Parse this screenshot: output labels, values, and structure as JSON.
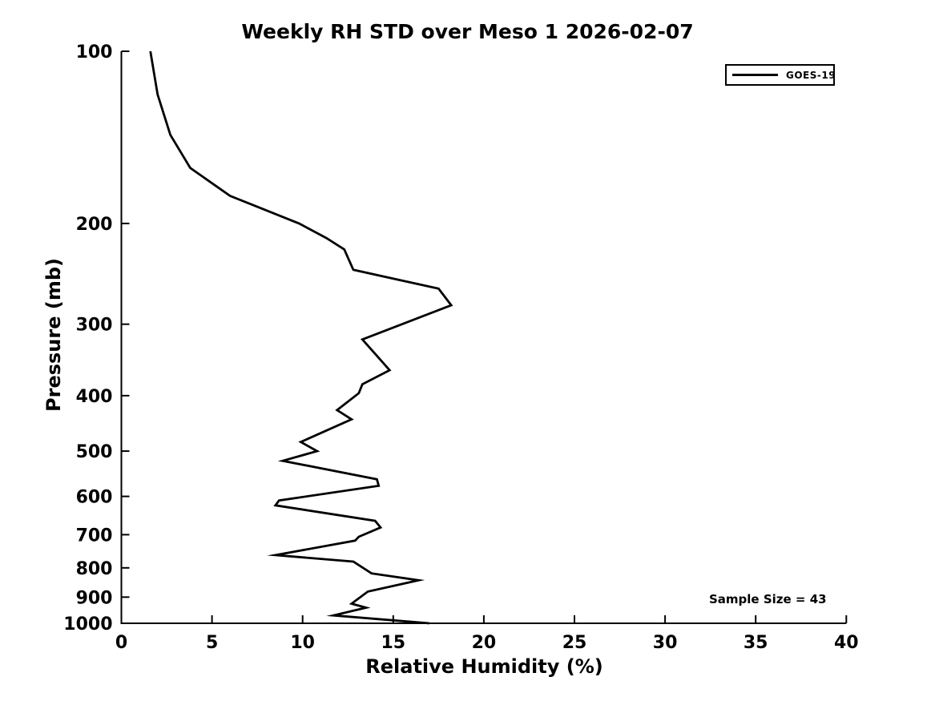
{
  "figure": {
    "background_color": "#ffffff",
    "line_color": "#000000",
    "text_color": "#000000"
  },
  "chart_data": {
    "type": "line",
    "title": "Weekly RH STD over Meso 1 2026-02-07",
    "xlabel": "Relative Humidity (%)",
    "ylabel": "Pressure (mb)",
    "xlim": [
      0,
      40
    ],
    "ylim": [
      100,
      1000
    ],
    "x_ticks": [
      0,
      5,
      10,
      15,
      20,
      25,
      30,
      35,
      40
    ],
    "y_ticks": [
      100,
      200,
      300,
      400,
      500,
      600,
      700,
      800,
      900,
      1000
    ],
    "y_scale": "log",
    "y_inverted": true,
    "grid": false,
    "legend_position": "top-right",
    "legend_entries": [
      "GOES-19"
    ],
    "annotations": [
      "Sample Size = 43"
    ],
    "series": [
      {
        "name": "GOES-19",
        "color": "#000000",
        "x_rh_percent": [
          1.6,
          2.0,
          2.7,
          3.8,
          6.0,
          9.8,
          11.3,
          12.3,
          12.8,
          17.5,
          18.2,
          13.3,
          14.8,
          13.3,
          13.1,
          11.9,
          12.7,
          9.9,
          10.8,
          8.9,
          14.1,
          14.2,
          8.7,
          8.5,
          14.0,
          14.3,
          13.1,
          12.9,
          8.5,
          12.8,
          13.8,
          16.4,
          13.6,
          12.7,
          13.5,
          11.7,
          17.0
        ],
        "y_pressure_mb": [
          100,
          119,
          140,
          160,
          179,
          200,
          212,
          222,
          241,
          260,
          278,
          319,
          361,
          382,
          396,
          424,
          440,
          482,
          500,
          520,
          560,
          575,
          610,
          622,
          662,
          680,
          706,
          717,
          760,
          780,
          818,
          841,
          880,
          924,
          939,
          969,
          1000
        ]
      }
    ]
  }
}
